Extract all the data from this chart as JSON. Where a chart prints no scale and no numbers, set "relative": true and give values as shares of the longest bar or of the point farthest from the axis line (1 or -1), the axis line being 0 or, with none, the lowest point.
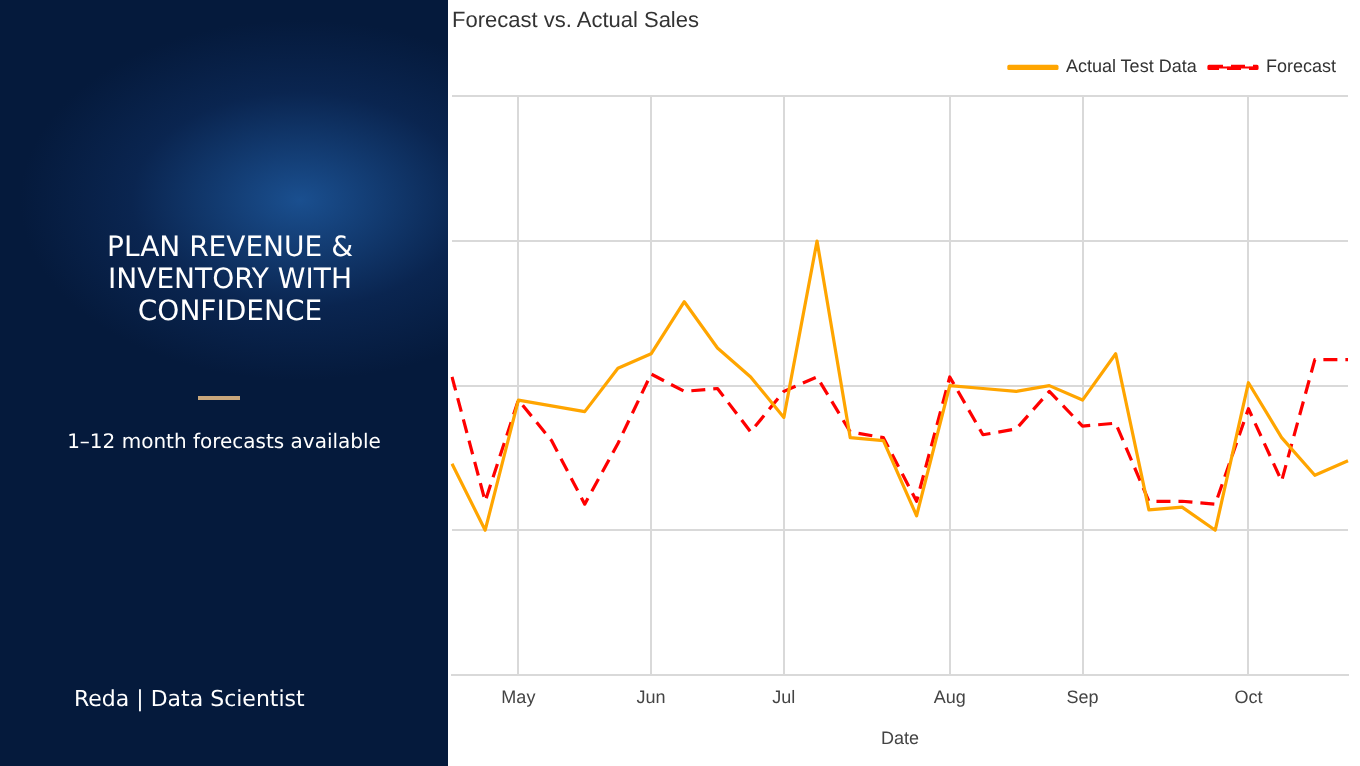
{
  "chart_data": {
    "type": "line",
    "title": "Forecast vs. Actual Sales",
    "xlabel": "Date",
    "categories": [
      null,
      null,
      "May",
      null,
      null,
      null,
      "Jun",
      null,
      null,
      null,
      "Jul",
      null,
      null,
      null,
      null,
      "Aug",
      null,
      null,
      null,
      "Sep",
      null,
      null,
      null,
      null,
      "Oct",
      null,
      null,
      null
    ],
    "relative": true,
    "series": [
      {
        "name": "Actual Test Data",
        "color": "#ffa500",
        "line_style": "solid",
        "values": [
          0.23,
          0,
          0.45,
          0.43,
          0.41,
          0.56,
          0.61,
          0.79,
          0.63,
          0.53,
          0.39,
          1,
          0.32,
          0.31,
          0.05,
          0.5,
          0.49,
          0.48,
          0.5,
          0.45,
          0.61,
          0.07,
          0.08,
          0,
          0.51,
          0.32,
          0.19,
          0.24
        ]
      },
      {
        "name": "Forecast",
        "color": "#ff0000",
        "line_style": "dashed",
        "values": [
          0.53,
          0.1,
          0.45,
          0.31,
          0.09,
          0.3,
          0.54,
          0.48,
          0.49,
          0.34,
          0.48,
          0.53,
          0.34,
          0.32,
          0.1,
          0.53,
          0.33,
          0.35,
          0.48,
          0.36,
          0.37,
          0.1,
          0.1,
          0.09,
          0.42,
          0.17,
          0.59,
          0.59
        ]
      }
    ],
    "grid": true,
    "legend": "top right",
    "marker": "none",
    "annotations": [
      "PLAN REVENUE & INVENTORY WITH CONFIDENCE",
      "1–12 month forecasts available",
      "Reda | Data Scientist"
    ]
  }
}
